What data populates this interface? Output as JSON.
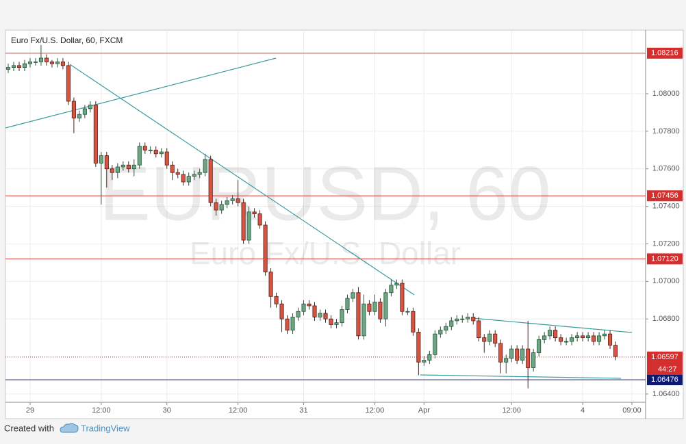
{
  "chart_data": {
    "type": "candlestick",
    "title": "Euro Fx/U.S. Dollar, 60, FXCM",
    "watermark": "EURUSD, 60",
    "watermark_subtitle": "Euro Fx/U.S. Dollar",
    "up_color": "#6ba583",
    "down_color": "#d75442",
    "categories": [
      null,
      null,
      null,
      null,
      "29",
      null,
      null,
      null,
      null,
      null,
      null,
      null,
      null,
      null,
      null,
      null,
      null,
      "12:00",
      null,
      null,
      null,
      null,
      null,
      null,
      null,
      null,
      null,
      null,
      null,
      "30",
      null,
      null,
      null,
      null,
      null,
      null,
      null,
      null,
      null,
      null,
      null,
      null,
      "12:00",
      null,
      null,
      null,
      null,
      null,
      null,
      null,
      null,
      null,
      null,
      null,
      "31",
      null,
      null,
      null,
      null,
      null,
      null,
      null,
      null,
      null,
      null,
      null,
      null,
      "12:00",
      null,
      null,
      null,
      null,
      null,
      null,
      null,
      null,
      "Apr",
      null,
      null,
      null,
      null,
      null,
      null,
      null,
      null,
      null,
      null,
      null,
      null,
      null,
      null,
      null,
      "12:00",
      null,
      null,
      null,
      null,
      null,
      null,
      null,
      null,
      null,
      null,
      null,
      null,
      "4",
      null,
      null,
      null,
      null,
      null,
      null,
      null,
      null,
      "09:00",
      null,
      null
    ],
    "open": [
      1.0813,
      1.0814,
      1.0815,
      1.0814,
      1.0816,
      1.0817,
      1.0817,
      1.0819,
      1.0817,
      1.0816,
      1.0817,
      1.0815,
      1.0796,
      1.0787,
      1.0789,
      1.0792,
      1.0794,
      1.0763,
      1.0767,
      1.076,
      1.0758,
      1.0761,
      1.0762,
      1.076,
      1.0762,
      1.0772,
      1.077,
      1.077,
      1.0768,
      1.0769,
      1.0762,
      1.0758,
      1.0757,
      1.0753,
      1.0756,
      1.0757,
      1.0758,
      1.0765,
      1.0742,
      1.0738,
      1.0741,
      1.0743,
      1.0744,
      1.0742,
      1.0722,
      1.0737,
      1.0736,
      1.073,
      1.0705,
      1.0692,
      1.0688,
      1.068,
      1.0674,
      1.0681,
      1.0684,
      1.0688,
      1.0687,
      1.0681,
      1.0683,
      1.068,
      1.0677,
      1.0678,
      1.0685,
      1.0691,
      1.0694,
      1.0671,
      1.0688,
      1.0684,
      1.0689,
      1.068,
      1.0694,
      1.0698,
      1.0699,
      1.0684,
      1.0684,
      1.0673,
      1.0657,
      1.0658,
      1.0661,
      1.0672,
      1.0674,
      1.0676,
      1.0679,
      1.068,
      1.068,
      1.0681,
      1.0679,
      1.067,
      1.0668,
      1.0672,
      1.0667,
      1.0657,
      1.0659,
      1.0664,
      1.0658,
      1.0664,
      1.0654,
      1.0662,
      1.0669,
      1.0671,
      1.0674,
      1.067,
      1.0668,
      1.0668,
      1.067,
      1.0671,
      1.067,
      1.0671,
      1.0668,
      1.0671,
      1.0672,
      1.0666,
      null,
      null,
      null,
      null,
      null
    ],
    "high": [
      1.0816,
      1.0817,
      1.0817,
      1.0818,
      1.0819,
      1.0819,
      1.0826,
      1.0821,
      1.0818,
      1.0819,
      1.0819,
      1.0817,
      1.0798,
      1.0791,
      1.0794,
      1.0796,
      1.0796,
      1.0769,
      1.0769,
      1.0762,
      1.0763,
      1.0764,
      1.0764,
      1.0765,
      1.0774,
      1.0774,
      1.0772,
      1.0772,
      1.0771,
      1.0771,
      1.0764,
      1.076,
      1.0759,
      1.0758,
      1.0759,
      1.076,
      1.0768,
      1.0767,
      1.0744,
      1.0743,
      1.0745,
      1.0746,
      1.0754,
      1.0744,
      1.074,
      1.0739,
      1.0738,
      1.0732,
      1.0707,
      1.0694,
      1.069,
      1.0682,
      1.0683,
      1.0686,
      1.069,
      1.069,
      1.0689,
      1.0685,
      1.0685,
      1.0682,
      1.068,
      1.0687,
      1.0693,
      1.0696,
      1.0697,
      1.0693,
      1.069,
      1.0693,
      1.0691,
      1.0696,
      1.0701,
      1.0701,
      1.0701,
      1.0686,
      1.0686,
      1.0675,
      1.066,
      1.0663,
      1.0674,
      1.0676,
      1.0678,
      1.0681,
      1.0682,
      1.0682,
      1.0683,
      1.0683,
      1.0681,
      1.0672,
      1.0674,
      1.0674,
      1.0669,
      1.0661,
      1.0666,
      1.0666,
      1.0666,
      1.0679,
      1.0664,
      1.0671,
      1.0673,
      1.0676,
      1.0676,
      1.0672,
      1.067,
      1.0672,
      1.0673,
      1.0673,
      1.0673,
      1.0673,
      1.0673,
      1.0674,
      1.0674,
      1.0668,
      null,
      null,
      null,
      null,
      null
    ],
    "low": [
      1.0811,
      1.0812,
      1.0812,
      1.0812,
      1.0814,
      1.0815,
      1.0815,
      1.0815,
      1.0814,
      1.0814,
      1.0813,
      1.0794,
      1.0779,
      1.0785,
      1.0787,
      1.079,
      1.0761,
      1.0741,
      1.075,
      1.0754,
      1.0755,
      1.0759,
      1.0758,
      1.0756,
      1.076,
      1.0768,
      1.0768,
      1.0766,
      1.0766,
      1.076,
      1.0754,
      1.0755,
      1.0751,
      1.0751,
      1.0754,
      1.0755,
      1.0756,
      1.074,
      1.0735,
      1.0736,
      1.0739,
      1.0741,
      1.074,
      1.072,
      1.072,
      1.0734,
      1.0728,
      1.0703,
      1.0686,
      1.0686,
      1.0673,
      1.0672,
      1.0672,
      1.0679,
      1.0682,
      1.0685,
      1.0679,
      1.0679,
      1.0678,
      1.0675,
      1.0675,
      1.0676,
      1.0683,
      1.0689,
      1.0669,
      1.0669,
      1.0682,
      1.0682,
      1.0678,
      1.0676,
      1.0692,
      1.0696,
      1.0682,
      1.0682,
      1.0671,
      1.065,
      1.0655,
      1.0656,
      1.0659,
      1.067,
      1.0672,
      1.0674,
      1.0677,
      1.0678,
      1.0678,
      1.0677,
      1.0668,
      1.0662,
      1.0666,
      1.0665,
      1.0651,
      1.0651,
      1.0657,
      1.0656,
      1.0656,
      1.0643,
      1.0652,
      1.066,
      1.0667,
      1.0669,
      1.0668,
      1.0666,
      1.0666,
      1.0666,
      1.0668,
      1.0668,
      1.0668,
      1.0666,
      1.0666,
      1.0669,
      1.0664,
      1.0658,
      null,
      null,
      null,
      null,
      null
    ],
    "close": [
      1.0814,
      1.0815,
      1.0814,
      1.0816,
      1.0817,
      1.0817,
      1.0819,
      1.0817,
      1.0816,
      1.0817,
      1.0815,
      1.0796,
      1.0787,
      1.0789,
      1.0792,
      1.0794,
      1.0763,
      1.0767,
      1.076,
      1.0758,
      1.0761,
      1.0762,
      1.076,
      1.0762,
      1.0772,
      1.077,
      1.077,
      1.0768,
      1.0769,
      1.0762,
      1.0758,
      1.0757,
      1.0753,
      1.0756,
      1.0757,
      1.0758,
      1.0765,
      1.0742,
      1.0738,
      1.0741,
      1.0743,
      1.0744,
      1.0742,
      1.0722,
      1.0737,
      1.0736,
      1.073,
      1.0705,
      1.0692,
      1.0688,
      1.068,
      1.0674,
      1.0681,
      1.0684,
      1.0688,
      1.0687,
      1.0681,
      1.0683,
      1.068,
      1.0677,
      1.0678,
      1.0685,
      1.0691,
      1.0694,
      1.0671,
      1.0688,
      1.0684,
      1.0689,
      1.068,
      1.0694,
      1.0698,
      1.0699,
      1.0684,
      1.0684,
      1.0673,
      1.0657,
      1.0658,
      1.0661,
      1.0672,
      1.0674,
      1.0676,
      1.0679,
      1.068,
      1.068,
      1.0681,
      1.0679,
      1.067,
      1.0668,
      1.0672,
      1.0667,
      1.0657,
      1.0659,
      1.0664,
      1.0658,
      1.0664,
      1.0654,
      1.0662,
      1.0669,
      1.0671,
      1.0674,
      1.067,
      1.0668,
      1.0668,
      1.067,
      1.0671,
      1.067,
      1.0671,
      1.0668,
      1.0671,
      1.0672,
      1.0666,
      1.066,
      null,
      null,
      null,
      null,
      null
    ],
    "ylim": [
      1.06356,
      1.08339
    ],
    "yticks": [
      {
        "value": 1.064,
        "label": "1.06400"
      },
      {
        "value": 1.068,
        "label": "1.06800"
      },
      {
        "value": 1.07,
        "label": "1.07000"
      },
      {
        "value": 1.072,
        "label": "1.07200"
      },
      {
        "value": 1.074,
        "label": "1.07400"
      },
      {
        "value": 1.076,
        "label": "1.07600"
      },
      {
        "value": 1.078,
        "label": "1.07800"
      },
      {
        "value": 1.08,
        "label": "1.08000"
      }
    ],
    "grid": true,
    "levels": [
      {
        "value": 1.08216,
        "color": "#d32f2f"
      },
      {
        "value": 1.07456,
        "color": "#d32f2f"
      },
      {
        "value": 1.0712,
        "label": "1.07120",
        "color": "#d32f2f"
      },
      {
        "value": 1.06476,
        "color": "#0d1b6e"
      }
    ],
    "last_price": {
      "value": 1.06597,
      "color": "#d32f2f",
      "countdown": "44:27"
    }
  },
  "footer": {
    "created_with": "Created with",
    "brand": "TradingView"
  }
}
